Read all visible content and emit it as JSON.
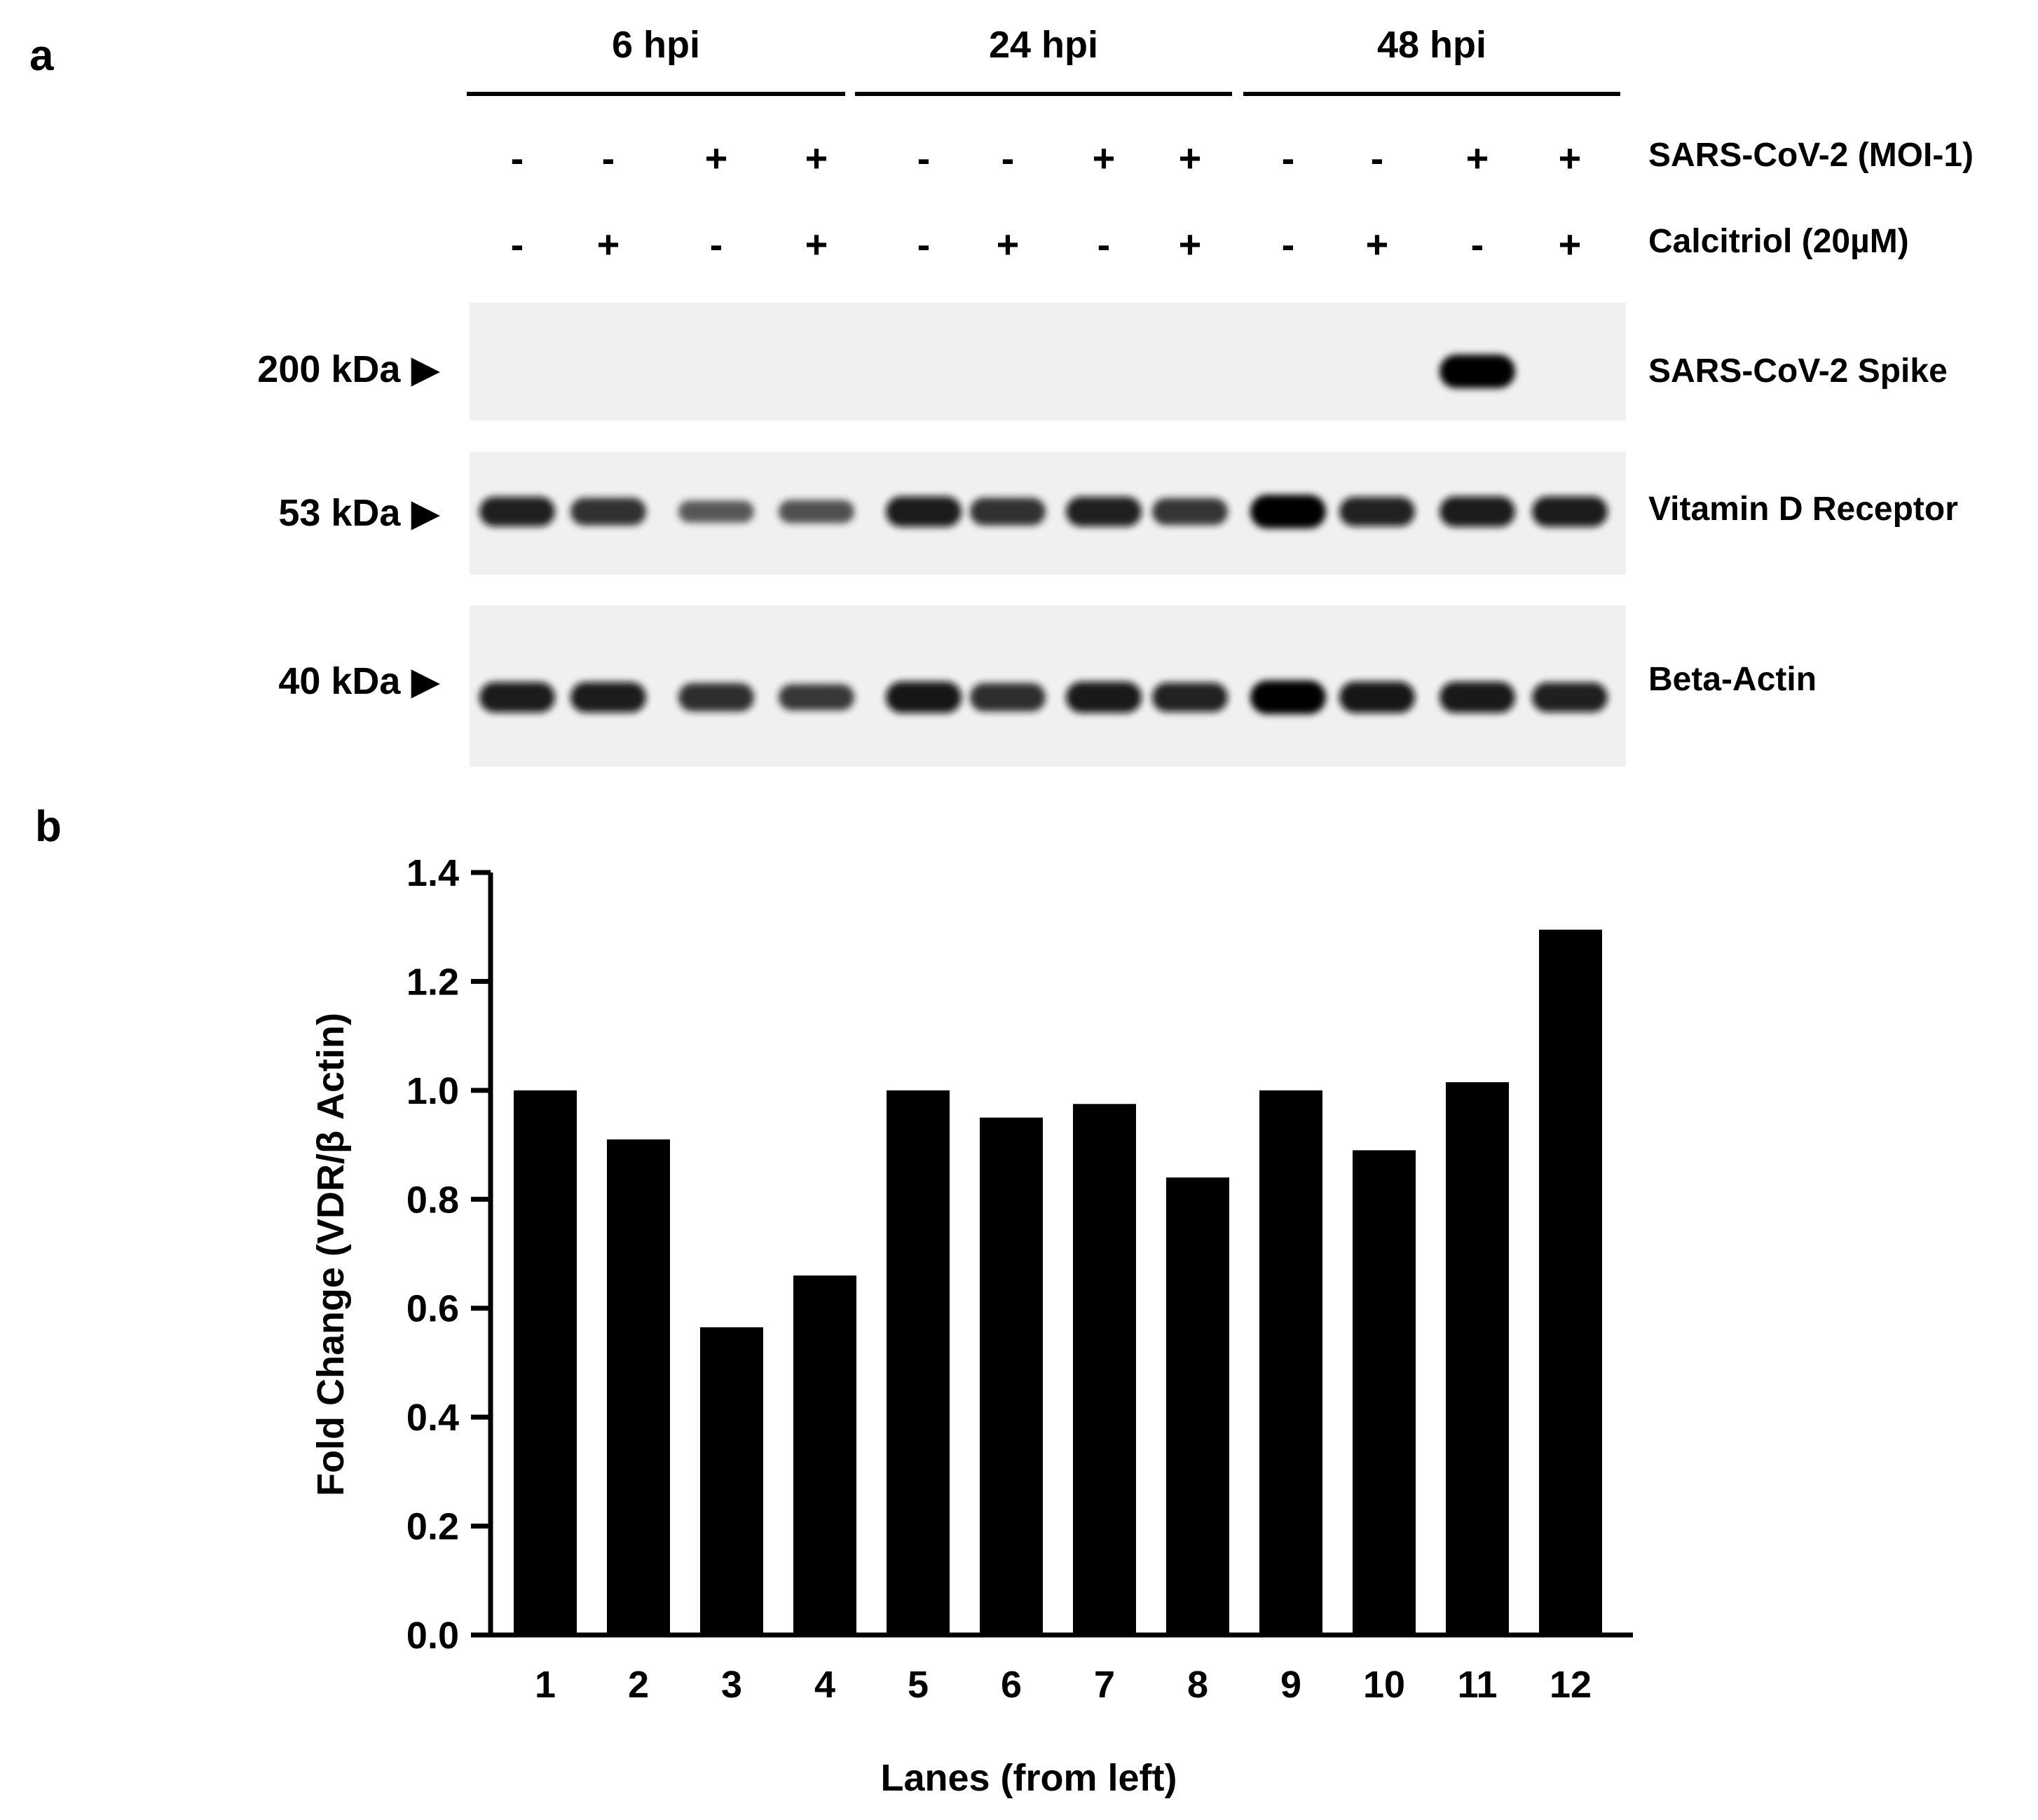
{
  "panel_a": {
    "label": "a",
    "time_groups": [
      "6 hpi",
      "24 hpi",
      "48 hpi"
    ],
    "treatments": [
      {
        "label": "SARS-CoV-2 (MOI-1)",
        "signs": [
          "-",
          "-",
          "+",
          "+",
          "-",
          "-",
          "+",
          "+",
          "-",
          "-",
          "+",
          "+"
        ]
      },
      {
        "label": "Calcitriol (20µM)",
        "signs": [
          "-",
          "+",
          "-",
          "+",
          "-",
          "+",
          "-",
          "+",
          "-",
          "+",
          "-",
          "+"
        ]
      }
    ],
    "blots": [
      {
        "marker": "200 kDa ▶",
        "protein": "SARS-CoV-2 Spike",
        "band_intensity": [
          0,
          0,
          0,
          0,
          0,
          0,
          0,
          0,
          0,
          0,
          1,
          0
        ]
      },
      {
        "marker": "53 kDa ▶",
        "protein": "Vitamin D Receptor",
        "band_intensity": [
          0.82,
          0.72,
          0.45,
          0.5,
          0.85,
          0.72,
          0.82,
          0.68,
          1.0,
          0.8,
          0.85,
          0.85
        ]
      },
      {
        "marker": "40 kDa ▶",
        "protein": "Beta-Actin",
        "band_intensity": [
          0.85,
          0.85,
          0.75,
          0.65,
          0.9,
          0.75,
          0.88,
          0.8,
          1.0,
          0.9,
          0.88,
          0.82
        ]
      }
    ]
  },
  "panel_b": {
    "label": "b",
    "chart_data": {
      "type": "bar",
      "categories": [
        "1",
        "2",
        "3",
        "4",
        "5",
        "6",
        "7",
        "8",
        "9",
        "10",
        "11",
        "12"
      ],
      "values": [
        1.0,
        0.91,
        0.565,
        0.66,
        1.0,
        0.95,
        0.975,
        0.84,
        1.0,
        0.89,
        1.015,
        1.295
      ],
      "xlabel": "Lanes (from left)",
      "ylabel": "Fold Change (VDR/β Actin)",
      "ylim": [
        0,
        1.4
      ],
      "yticks": [
        "0.0",
        "0.2",
        "0.4",
        "0.6",
        "0.8",
        "1.0",
        "1.2",
        "1.4"
      ],
      "bar_color": "#000000",
      "grid": false,
      "legend": "none"
    }
  }
}
